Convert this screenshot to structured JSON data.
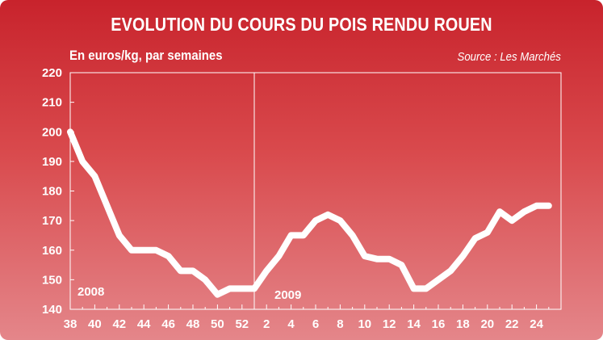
{
  "chart_data": {
    "type": "line",
    "title": "EVOLUTION DU COURS DU POIS RENDU ROUEN",
    "subtitle": "En euros/kg, par semaines",
    "source": "Source : Les Marchés",
    "period_labels": [
      "2008",
      "2009"
    ],
    "x_tick_labels": [
      "38",
      "40",
      "42",
      "44",
      "46",
      "48",
      "50",
      "52",
      "2",
      "4",
      "6",
      "8",
      "10",
      "12",
      "14",
      "16",
      "18",
      "20",
      "22",
      "24"
    ],
    "y_ticks": [
      140,
      150,
      160,
      170,
      180,
      190,
      200,
      210,
      220
    ],
    "ylim": [
      140,
      220
    ],
    "xlim": [
      38,
      78
    ],
    "year_divider_x": 53,
    "grid": false,
    "series": [
      {
        "x": [
          38,
          39,
          40,
          41,
          42,
          43,
          44,
          45,
          46,
          47,
          48,
          49,
          50,
          51,
          52,
          53,
          54,
          55,
          56,
          57,
          58,
          59,
          60,
          61,
          62,
          63,
          64,
          65,
          66,
          67,
          68,
          69,
          70,
          71,
          72,
          73,
          74,
          75,
          76,
          77
        ],
        "values": [
          200,
          190,
          185,
          175,
          165,
          160,
          160,
          160,
          158,
          153,
          153,
          150,
          145,
          147,
          147,
          147,
          153,
          158,
          165,
          165,
          170,
          172,
          170,
          165,
          158,
          157,
          157,
          155,
          147,
          147,
          150,
          153,
          158,
          164,
          166,
          173,
          170,
          173,
          175,
          175
        ]
      }
    ],
    "colors": {
      "background_top": "#c8232c",
      "background_bottom": "#e4868a",
      "line": "#ffffff",
      "text": "#ffffff"
    }
  }
}
